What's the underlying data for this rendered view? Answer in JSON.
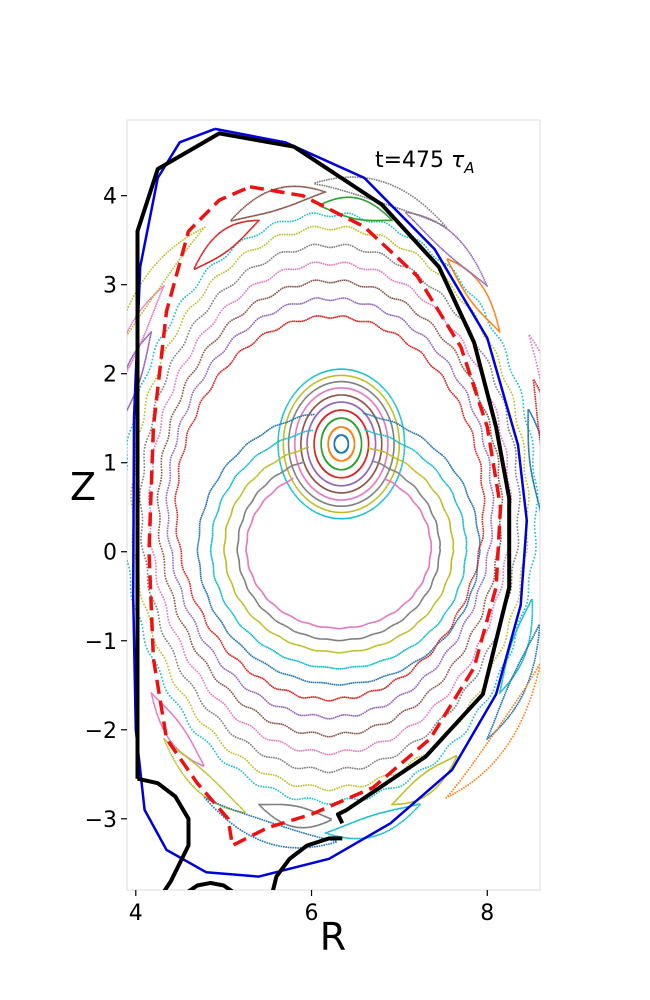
{
  "chart_data": {
    "type": "scatter",
    "title": "",
    "annotation": {
      "prefix": "t=475 ",
      "symbol": "τ",
      "subscript": "A"
    },
    "xlabel": "R",
    "ylabel": "Z",
    "xlim": [
      3.9,
      8.6
    ],
    "ylim": [
      -3.8,
      4.85
    ],
    "xticks": [
      4,
      6,
      8
    ],
    "xtick_labels": [
      "4",
      "6",
      "8"
    ],
    "yticks": [
      -3,
      -2,
      -1,
      0,
      1,
      2,
      3,
      4
    ],
    "ytick_labels": [
      "−3",
      "−2",
      "−1",
      "0",
      "1",
      "2",
      "3",
      "4"
    ],
    "grid": false,
    "legend": "none",
    "boundaries": [
      {
        "id": "blue-flux-boundary",
        "style": "solid",
        "color": "#0000dd",
        "points": [
          [
            4.9,
            4.75
          ],
          [
            5.7,
            4.6
          ],
          [
            6.6,
            4.2
          ],
          [
            7.4,
            3.4
          ],
          [
            8.0,
            2.4
          ],
          [
            8.35,
            1.2
          ],
          [
            8.45,
            0.35
          ],
          [
            8.38,
            -0.6
          ],
          [
            8.1,
            -1.6
          ],
          [
            7.6,
            -2.45
          ],
          [
            6.9,
            -3.05
          ],
          [
            6.2,
            -3.45
          ],
          [
            5.4,
            -3.65
          ],
          [
            4.8,
            -3.6
          ],
          [
            4.35,
            -3.35
          ],
          [
            4.1,
            -2.9
          ],
          [
            4.0,
            -2.0
          ],
          [
            3.97,
            -0.5
          ],
          [
            3.98,
            1.5
          ],
          [
            4.05,
            3.2
          ],
          [
            4.25,
            4.2
          ],
          [
            4.5,
            4.6
          ],
          [
            4.9,
            4.75
          ]
        ]
      },
      {
        "id": "black-wall",
        "style": "solid",
        "color": "#000000",
        "points": [
          [
            4.02,
            -2.55
          ],
          [
            4.02,
            3.6
          ],
          [
            4.25,
            4.3
          ],
          [
            4.95,
            4.7
          ],
          [
            5.8,
            4.55
          ],
          [
            6.8,
            3.9
          ],
          [
            7.45,
            3.2
          ],
          [
            7.85,
            2.35
          ],
          [
            8.1,
            1.4
          ],
          [
            8.25,
            0.6
          ],
          [
            8.25,
            -0.4
          ],
          [
            7.95,
            -1.6
          ],
          [
            7.3,
            -2.3
          ],
          [
            6.4,
            -2.9
          ],
          [
            6.3,
            -2.95
          ],
          [
            6.35,
            -3.05
          ]
        ]
      },
      {
        "id": "black-lower-left-coil",
        "style": "solid",
        "color": "#000000",
        "points": [
          [
            4.02,
            -2.55
          ],
          [
            4.25,
            -2.6
          ],
          [
            4.45,
            -2.75
          ],
          [
            4.6,
            -3.0
          ],
          [
            4.6,
            -3.3
          ],
          [
            4.5,
            -3.5
          ],
          [
            4.4,
            -3.7
          ],
          [
            4.3,
            -3.85
          ]
        ]
      },
      {
        "id": "black-divertor-dome",
        "style": "solid",
        "color": "#000000",
        "points": [
          [
            4.55,
            -3.85
          ],
          [
            4.7,
            -3.75
          ],
          [
            4.85,
            -3.72
          ],
          [
            5.0,
            -3.75
          ],
          [
            5.15,
            -3.85
          ]
        ]
      },
      {
        "id": "black-lower-right-coil",
        "style": "solid",
        "color": "#000000",
        "points": [
          [
            5.55,
            -3.85
          ],
          [
            5.6,
            -3.65
          ],
          [
            5.75,
            -3.45
          ],
          [
            5.95,
            -3.3
          ],
          [
            6.2,
            -3.22
          ],
          [
            6.35,
            -3.22
          ]
        ]
      },
      {
        "id": "red-dashed-separatrix",
        "style": "dashed",
        "color": "#ee1111",
        "points": [
          [
            5.3,
            4.1
          ],
          [
            5.9,
            4.0
          ],
          [
            6.6,
            3.65
          ],
          [
            7.2,
            3.1
          ],
          [
            7.7,
            2.3
          ],
          [
            8.0,
            1.4
          ],
          [
            8.15,
            0.5
          ],
          [
            8.1,
            -0.4
          ],
          [
            7.85,
            -1.3
          ],
          [
            7.35,
            -2.1
          ],
          [
            6.7,
            -2.65
          ],
          [
            6.0,
            -2.95
          ],
          [
            5.5,
            -3.1
          ],
          [
            5.1,
            -3.3
          ],
          [
            5.05,
            -3.0
          ],
          [
            4.7,
            -2.6
          ],
          [
            4.35,
            -2.1
          ],
          [
            4.2,
            -1.2
          ],
          [
            4.15,
            0.0
          ],
          [
            4.2,
            1.4
          ],
          [
            4.35,
            2.7
          ],
          [
            4.6,
            3.6
          ],
          [
            4.95,
            3.95
          ],
          [
            5.3,
            4.1
          ]
        ]
      }
    ],
    "poincare_palette": [
      "#1f77b4",
      "#ff7f0e",
      "#2ca02c",
      "#d62728",
      "#9467bd",
      "#8c564b",
      "#e377c2",
      "#7f7f7f",
      "#bcbd22",
      "#17becf"
    ],
    "nested_surfaces": {
      "center": [
        6.33,
        1.22
      ],
      "radii": [
        [
          0.08,
          0.1
        ],
        [
          0.15,
          0.19
        ],
        [
          0.23,
          0.29
        ],
        [
          0.31,
          0.38
        ],
        [
          0.39,
          0.47
        ],
        [
          0.46,
          0.55
        ],
        [
          0.53,
          0.63
        ],
        [
          0.6,
          0.7
        ],
        [
          0.66,
          0.77
        ],
        [
          0.72,
          0.84
        ]
      ]
    },
    "crescent_island": {
      "description_free": true,
      "center": [
        6.3,
        0.05
      ],
      "curves": [
        {
          "rx": 1.05,
          "ry": 1.0,
          "gap_deg": [
            60,
            120
          ]
        },
        {
          "rx": 1.15,
          "ry": 1.15,
          "gap_deg": [
            70,
            110
          ]
        },
        {
          "rx": 1.3,
          "ry": 1.3,
          "gap_deg": [
            75,
            105
          ]
        },
        {
          "rx": 1.45,
          "ry": 1.5,
          "gap_deg": [
            78,
            102
          ]
        },
        {
          "rx": 1.6,
          "ry": 1.7,
          "gap_deg": [
            80,
            100
          ]
        }
      ]
    },
    "outer_surfaces": {
      "center": [
        6.2,
        0.5
      ],
      "radii": [
        [
          1.75,
          2.15
        ],
        [
          1.85,
          2.35
        ],
        [
          1.95,
          2.55
        ],
        [
          2.05,
          2.75
        ],
        [
          2.15,
          2.95
        ],
        [
          2.25,
          3.15
        ],
        [
          2.35,
          3.3
        ]
      ]
    },
    "island_chains": {
      "center": [
        6.15,
        0.45
      ],
      "chains": [
        {
          "rx": 2.45,
          "ry": 3.45,
          "count": 10
        },
        {
          "rx": 2.6,
          "ry": 3.6,
          "count": 8
        },
        {
          "rx": 2.75,
          "ry": 3.7,
          "count": 6
        }
      ]
    }
  }
}
